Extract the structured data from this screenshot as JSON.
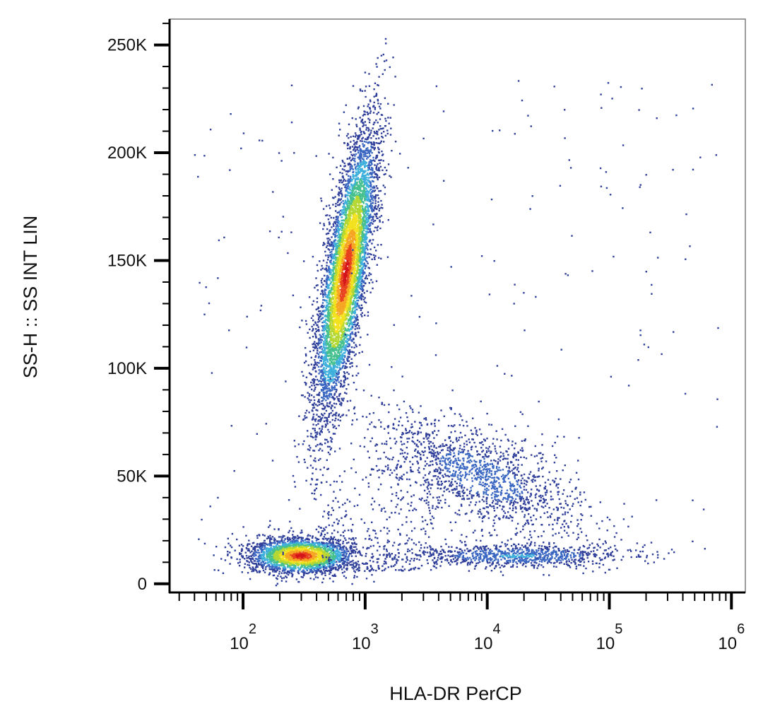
{
  "chart_data": {
    "type": "scatter",
    "title": "",
    "xlabel": "HLA-DR PerCP",
    "ylabel": "SS-H :: SS INT LIN",
    "x_scale": "log",
    "xlim": [
      25,
      1300000
    ],
    "ylim": [
      -4000,
      262000
    ],
    "x_ticks": [
      {
        "value": 100,
        "base": "10",
        "exp": "2"
      },
      {
        "value": 1000,
        "base": "10",
        "exp": "3"
      },
      {
        "value": 10000,
        "base": "10",
        "exp": "4"
      },
      {
        "value": 100000,
        "base": "10",
        "exp": "5"
      },
      {
        "value": 1000000,
        "base": "10",
        "exp": "6"
      }
    ],
    "y_ticks": [
      {
        "value": 0,
        "label": "0"
      },
      {
        "value": 50000,
        "label": "50K"
      },
      {
        "value": 100000,
        "label": "100K"
      },
      {
        "value": 150000,
        "label": "150K"
      },
      {
        "value": 200000,
        "label": "200K"
      },
      {
        "value": 250000,
        "label": "250K"
      }
    ],
    "density_colors": [
      "#2f3f9a",
      "#3a67c2",
      "#3fb0dc",
      "#46c08e",
      "#b5d733",
      "#f2e21f",
      "#f5a623",
      "#e8421e",
      "#d4141b"
    ],
    "grid": false,
    "populations": [
      {
        "name": "",
        "center": {
          "x": 700,
          "y": 145000
        },
        "n_events": 6000
      },
      {
        "name": "",
        "center": {
          "x": 300,
          "y": 13000
        },
        "n_events": 2500
      },
      {
        "name": "",
        "center": {
          "x": 9000,
          "y": 50000
        },
        "n_events": 1500
      },
      {
        "name": "",
        "center": {
          "x": 18000,
          "y": 13000
        },
        "n_events": 900
      }
    ]
  }
}
